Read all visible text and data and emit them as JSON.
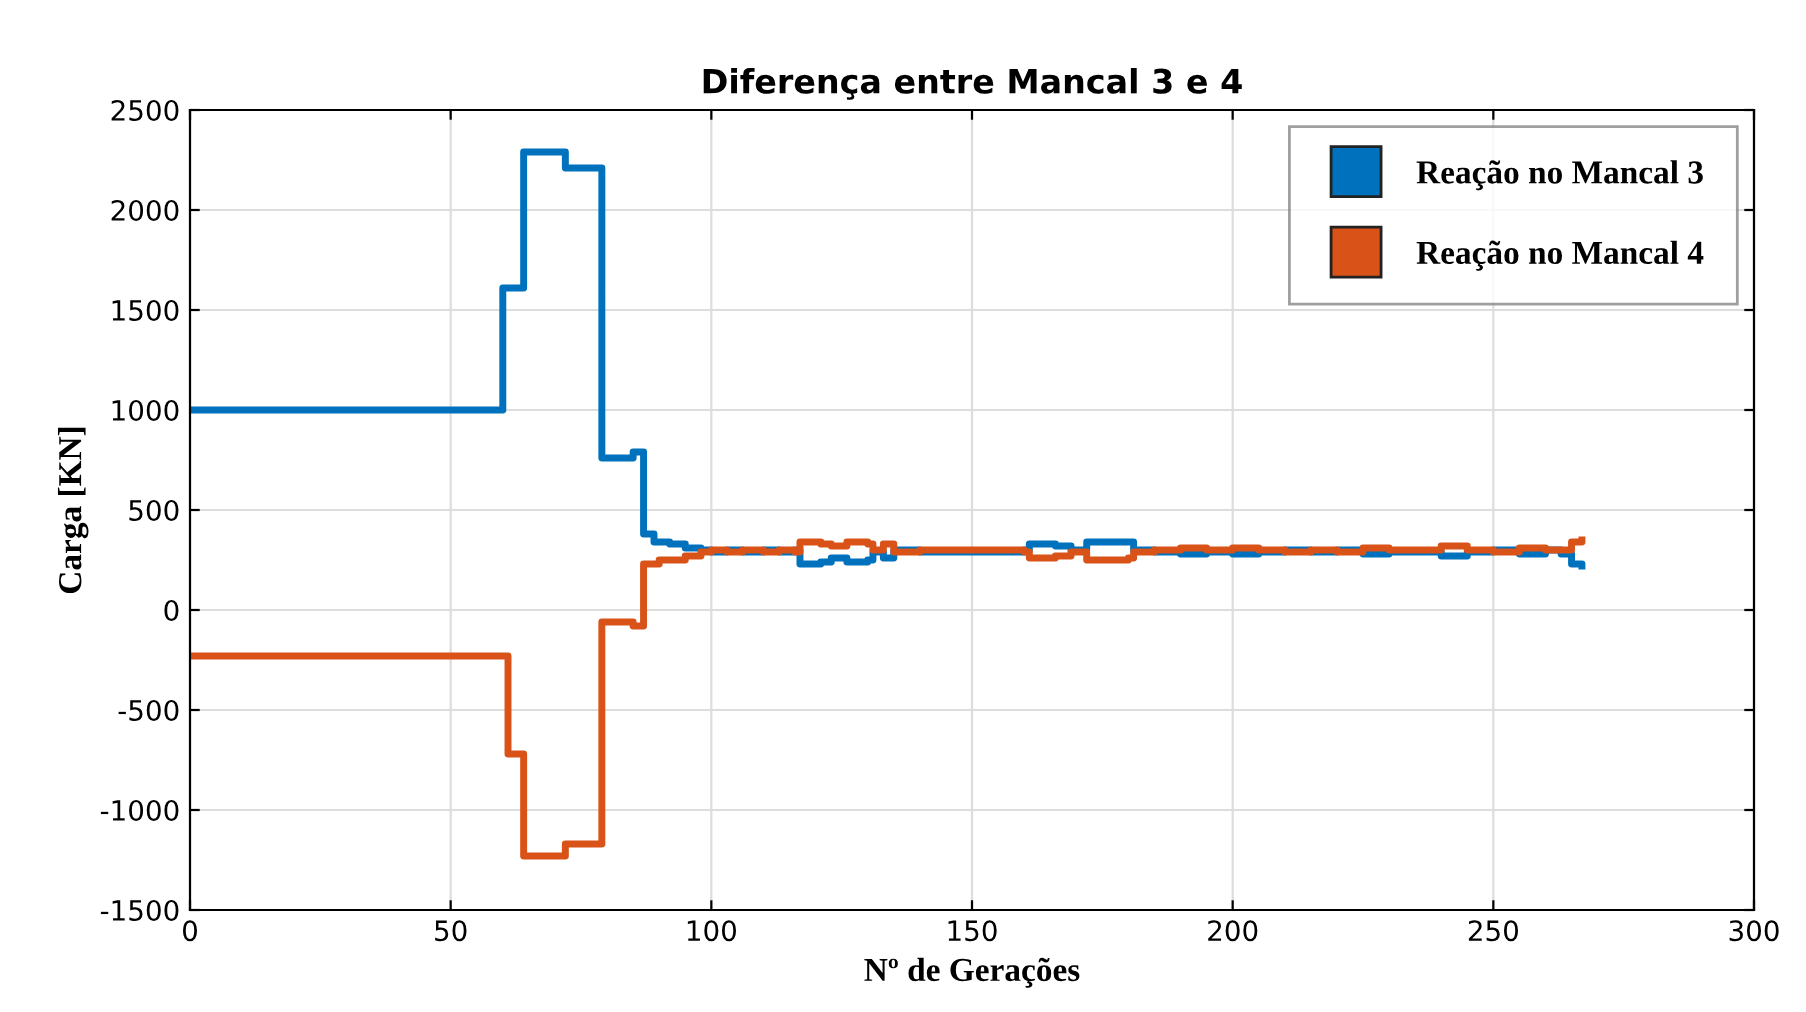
{
  "chart_data": {
    "type": "step",
    "title": "Diferença entre Mancal 3 e 4",
    "xlabel": "Nº de Gerações",
    "ylabel": "Carga [KN]",
    "xlim": [
      0,
      300
    ],
    "ylim": [
      -1500,
      2500
    ],
    "xticks": [
      0,
      50,
      100,
      150,
      200,
      250,
      300
    ],
    "yticks": [
      -1500,
      -1000,
      -500,
      0,
      500,
      1000,
      1500,
      2000,
      2500
    ],
    "grid": true,
    "legend": "top right",
    "line_style": "solid",
    "marker": "none",
    "series": [
      {
        "name": "Reação no Mancal 3",
        "color": "#0072bd",
        "x": [
          0,
          59,
          60,
          63,
          64,
          71,
          72,
          78,
          79,
          84,
          85,
          86,
          87,
          89,
          92,
          95,
          98,
          100,
          103,
          106,
          110,
          113,
          116,
          117,
          121,
          123,
          126,
          130,
          131,
          133,
          135,
          140,
          145,
          150,
          155,
          160,
          161,
          166,
          169,
          172,
          180,
          181,
          185,
          190,
          195,
          200,
          205,
          210,
          215,
          220,
          225,
          230,
          235,
          240,
          245,
          250,
          255,
          260,
          263,
          265,
          267
        ],
        "values": [
          1000,
          1000,
          1610,
          1610,
          2290,
          2290,
          2210,
          2210,
          760,
          760,
          790,
          790,
          380,
          340,
          330,
          310,
          300,
          290,
          300,
          290,
          300,
          290,
          300,
          230,
          240,
          260,
          240,
          250,
          290,
          260,
          300,
          290,
          290,
          290,
          290,
          300,
          330,
          320,
          300,
          340,
          340,
          300,
          290,
          280,
          290,
          280,
          290,
          300,
          290,
          300,
          280,
          290,
          290,
          270,
          290,
          300,
          280,
          300,
          280,
          230,
          220
        ]
      },
      {
        "name": "Reação no Mancal 4",
        "color": "#d95319",
        "x": [
          0,
          59,
          61,
          63,
          64,
          71,
          72,
          78,
          79,
          84,
          85,
          86,
          87,
          90,
          95,
          98,
          100,
          103,
          106,
          110,
          113,
          116,
          117,
          121,
          123,
          126,
          130,
          131,
          133,
          135,
          140,
          145,
          150,
          155,
          160,
          161,
          166,
          169,
          172,
          180,
          181,
          185,
          190,
          195,
          200,
          205,
          210,
          215,
          220,
          225,
          230,
          235,
          240,
          245,
          250,
          255,
          260,
          263,
          265,
          267
        ],
        "values": [
          -230,
          -230,
          -720,
          -720,
          -1230,
          -1230,
          -1170,
          -1170,
          -60,
          -60,
          -80,
          -80,
          230,
          250,
          270,
          290,
          300,
          290,
          300,
          290,
          300,
          290,
          340,
          330,
          320,
          340,
          330,
          300,
          330,
          290,
          300,
          300,
          300,
          300,
          290,
          260,
          270,
          290,
          250,
          260,
          290,
          300,
          310,
          300,
          310,
          300,
          290,
          300,
          290,
          310,
          300,
          300,
          320,
          300,
          290,
          310,
          300,
          300,
          340,
          350
        ]
      }
    ]
  }
}
